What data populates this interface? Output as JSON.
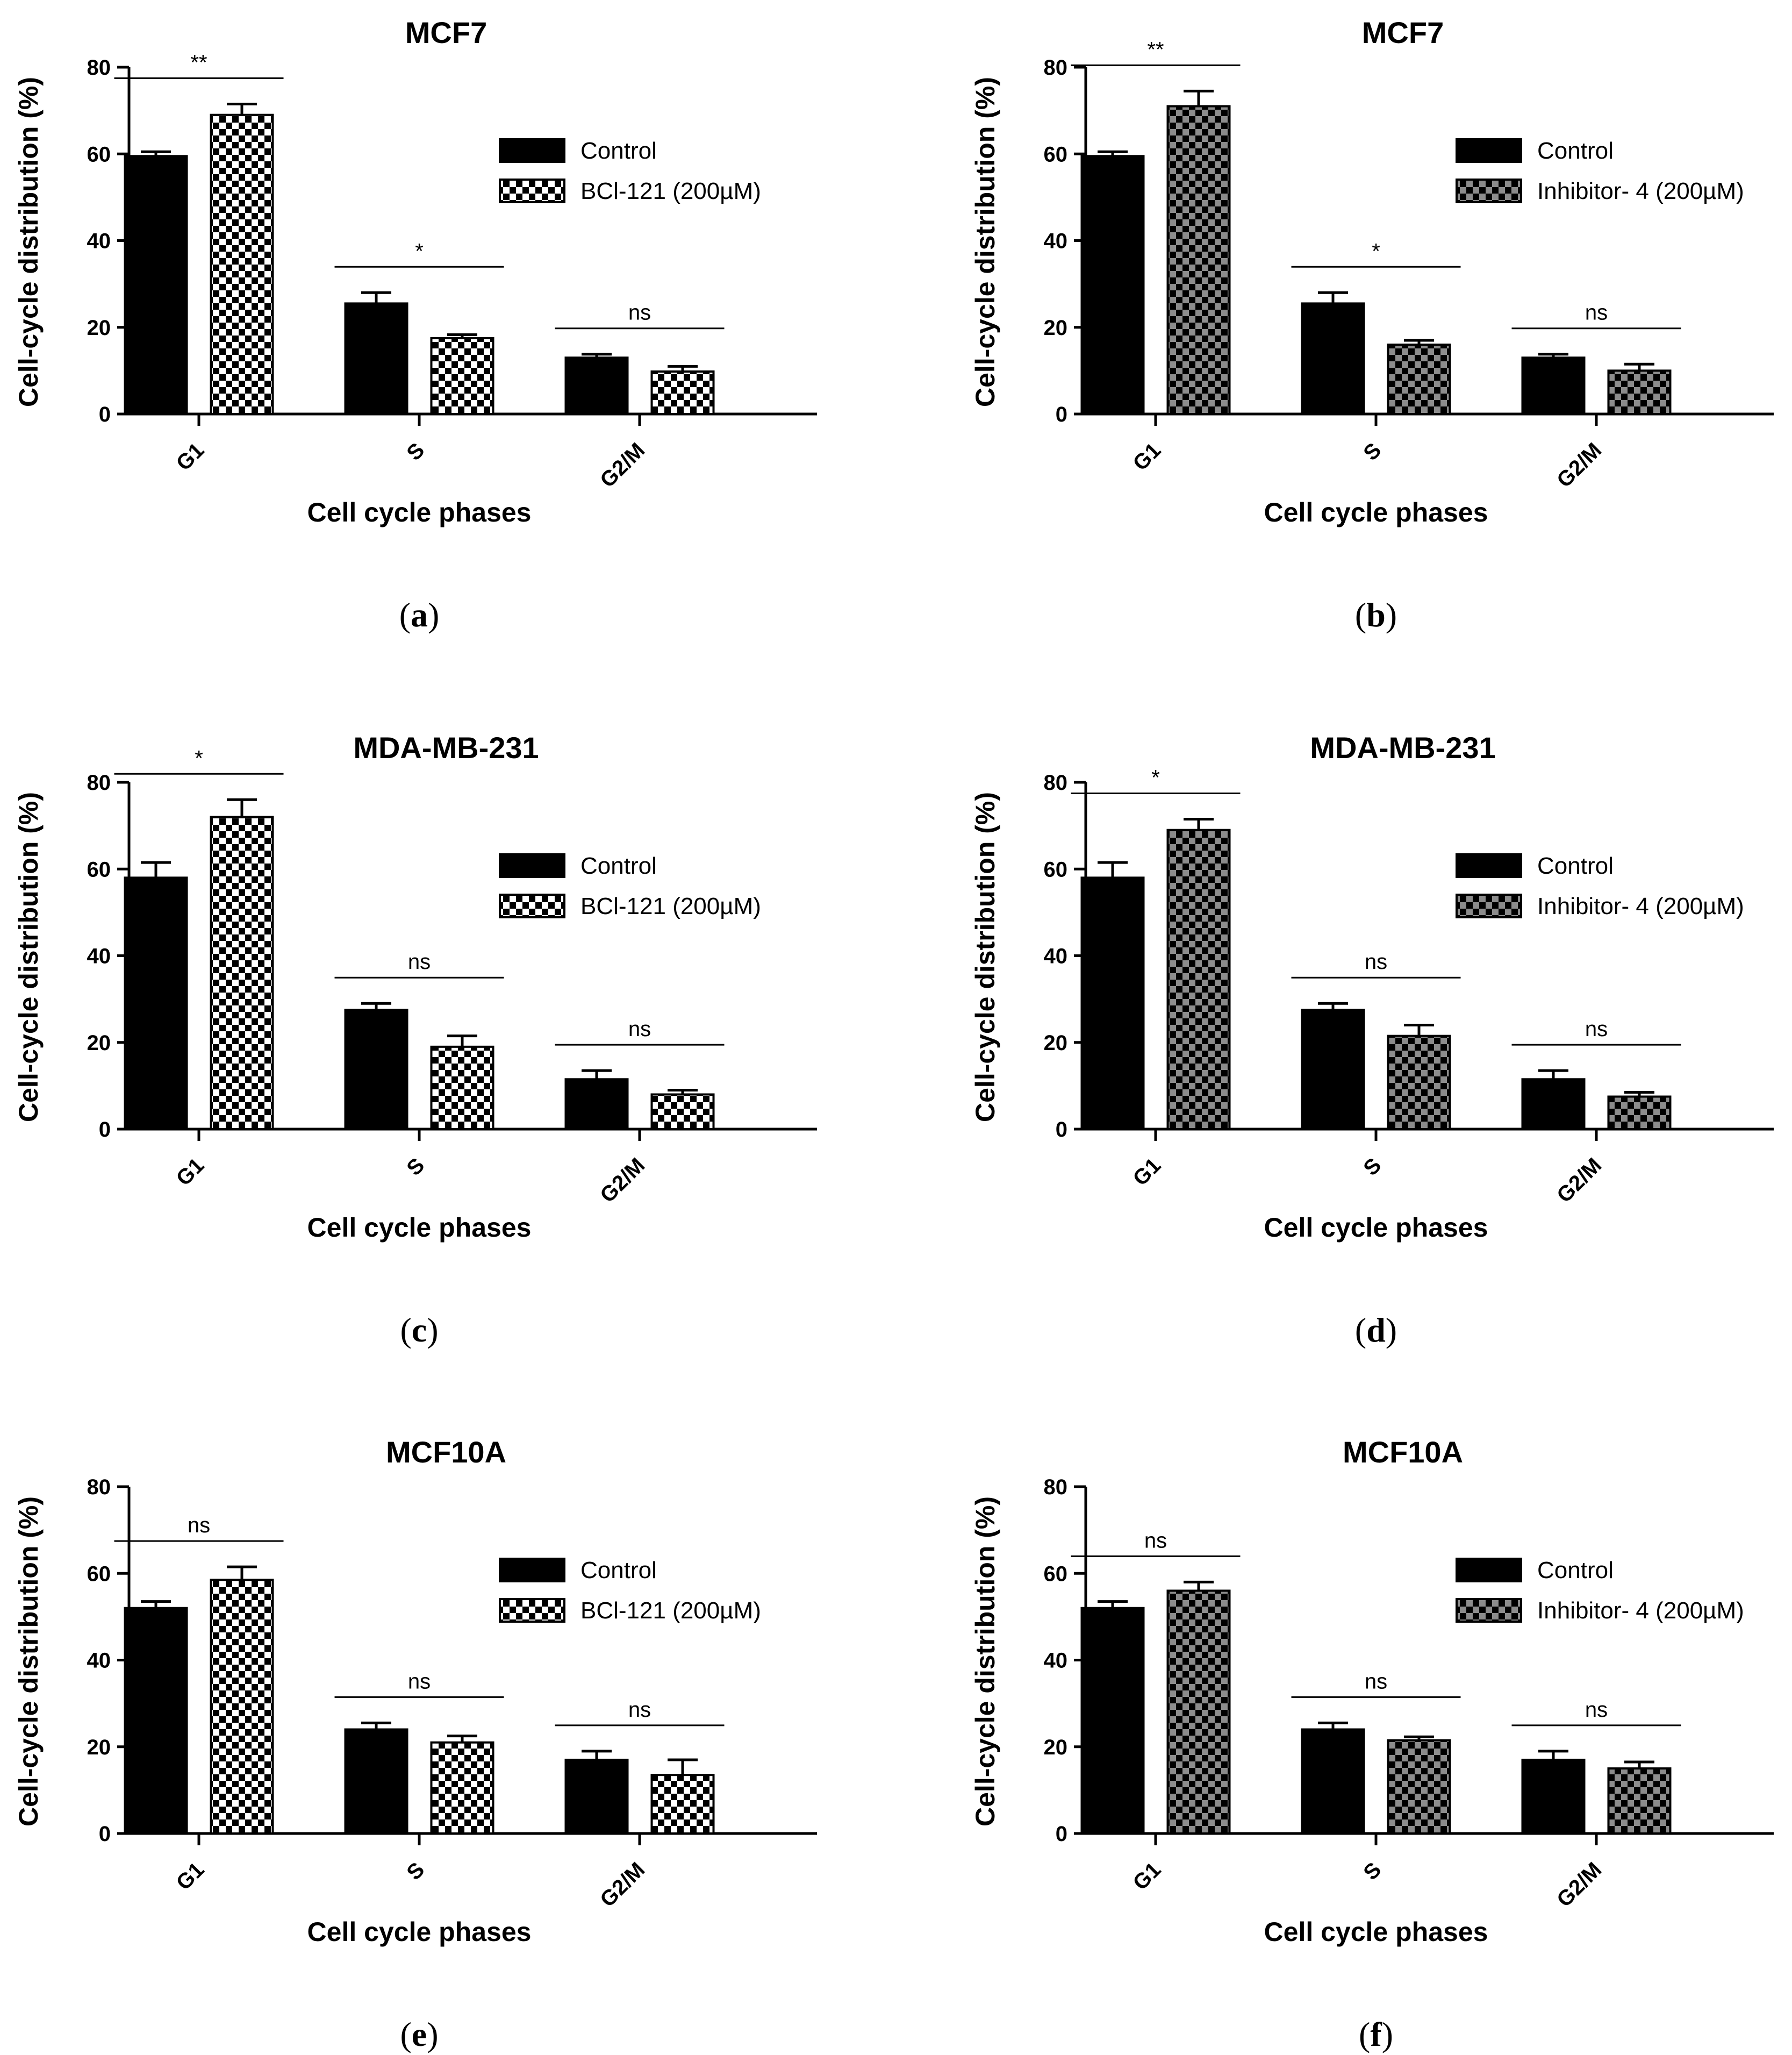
{
  "chart_data": [
    {
      "id": "a",
      "type": "bar",
      "title": "MCF7",
      "xlabel": "Cell cycle phases",
      "ylabel": "Cell-cycle distribution (%)",
      "ylim": [
        0,
        80
      ],
      "yticks": [
        "0",
        "20",
        "40",
        "60",
        "80"
      ],
      "categories": [
        "G1",
        "S",
        "G2/M"
      ],
      "series": [
        {
          "name": "Control",
          "pattern": "solid",
          "values": [
            59.5,
            25.5,
            13.0
          ],
          "errors": [
            1.0,
            2.5,
            0.8
          ]
        },
        {
          "name": "BCl-121 (200µM)",
          "pattern": "checker",
          "values": [
            69.0,
            17.5,
            9.8
          ],
          "errors": [
            2.5,
            0.8,
            1.2
          ]
        }
      ],
      "significance": [
        "**",
        "*",
        "ns"
      ],
      "caption_open": "(",
      "caption_letter": "a",
      "caption_close": ")"
    },
    {
      "id": "b",
      "type": "bar",
      "title": "MCF7",
      "xlabel": "Cell cycle phases",
      "ylabel": "Cell-cycle distribution (%)",
      "ylim": [
        0,
        80
      ],
      "yticks": [
        "0",
        "20",
        "40",
        "60",
        "80"
      ],
      "categories": [
        "G1",
        "S",
        "G2/M"
      ],
      "series": [
        {
          "name": "Control",
          "pattern": "solid",
          "values": [
            59.5,
            25.5,
            13.0
          ],
          "errors": [
            1.0,
            2.5,
            0.8
          ]
        },
        {
          "name": "Inhibitor- 4 (200µM)",
          "pattern": "gray-checker",
          "values": [
            71.0,
            16.0,
            10.0
          ],
          "errors": [
            3.5,
            1.0,
            1.5
          ]
        }
      ],
      "significance": [
        "**",
        "*",
        "ns"
      ],
      "caption_open": "(",
      "caption_letter": "b",
      "caption_close": ")"
    },
    {
      "id": "c",
      "type": "bar",
      "title": "MDA-MB-231",
      "xlabel": "Cell cycle phases",
      "ylabel": "Cell-cycle distribution (%)",
      "ylim": [
        0,
        80
      ],
      "yticks": [
        "0",
        "20",
        "40",
        "60",
        "80"
      ],
      "categories": [
        "G1",
        "S",
        "G2/M"
      ],
      "series": [
        {
          "name": "Control",
          "pattern": "solid",
          "values": [
            58.0,
            27.5,
            11.5
          ],
          "errors": [
            3.5,
            1.5,
            2.0
          ]
        },
        {
          "name": "BCl-121 (200µM)",
          "pattern": "checker",
          "values": [
            72.0,
            19.0,
            8.0
          ],
          "errors": [
            4.0,
            2.5,
            1.0
          ]
        }
      ],
      "significance": [
        "*",
        "ns",
        "ns"
      ],
      "caption_open": "(",
      "caption_letter": "c",
      "caption_close": ")"
    },
    {
      "id": "d",
      "type": "bar",
      "title": "MDA-MB-231",
      "xlabel": "Cell cycle phases",
      "ylabel": "Cell-cycle distribution (%)",
      "ylim": [
        0,
        80
      ],
      "yticks": [
        "0",
        "20",
        "40",
        "60",
        "80"
      ],
      "categories": [
        "G1",
        "S",
        "G2/M"
      ],
      "series": [
        {
          "name": "Control",
          "pattern": "solid",
          "values": [
            58.0,
            27.5,
            11.5
          ],
          "errors": [
            3.5,
            1.5,
            2.0
          ]
        },
        {
          "name": "Inhibitor- 4 (200µM)",
          "pattern": "gray-checker",
          "values": [
            69.0,
            21.5,
            7.5
          ],
          "errors": [
            2.5,
            2.5,
            1.0
          ]
        }
      ],
      "significance": [
        "*",
        "ns",
        "ns"
      ],
      "caption_open": "(",
      "caption_letter": "d",
      "caption_close": ")"
    },
    {
      "id": "e",
      "type": "bar",
      "title": "MCF10A",
      "xlabel": "Cell cycle phases",
      "ylabel": "Cell-cycle distribution (%)",
      "ylim": [
        0,
        80
      ],
      "yticks": [
        "0",
        "20",
        "40",
        "60",
        "80"
      ],
      "categories": [
        "G1",
        "S",
        "G2/M"
      ],
      "series": [
        {
          "name": "Control",
          "pattern": "solid",
          "values": [
            52.0,
            24.0,
            17.0
          ],
          "errors": [
            1.5,
            1.5,
            2.0
          ]
        },
        {
          "name": "BCl-121 (200µM)",
          "pattern": "checker",
          "values": [
            58.5,
            21.0,
            13.5
          ],
          "errors": [
            3.0,
            1.5,
            3.5
          ]
        }
      ],
      "significance": [
        "ns",
        "ns",
        "ns"
      ],
      "caption_open": "(",
      "caption_letter": "e",
      "caption_close": ")"
    },
    {
      "id": "f",
      "type": "bar",
      "title": "MCF10A",
      "xlabel": "Cell cycle phases",
      "ylabel": "Cell-cycle distribution (%)",
      "ylim": [
        0,
        80
      ],
      "yticks": [
        "0",
        "20",
        "40",
        "60",
        "80"
      ],
      "categories": [
        "G1",
        "S",
        "G2/M"
      ],
      "series": [
        {
          "name": "Control",
          "pattern": "solid",
          "values": [
            52.0,
            24.0,
            17.0
          ],
          "errors": [
            1.5,
            1.5,
            2.0
          ]
        },
        {
          "name": "Inhibitor- 4 (200µM)",
          "pattern": "gray-checker",
          "values": [
            56.0,
            21.5,
            15.0
          ],
          "errors": [
            2.0,
            0.8,
            1.5
          ]
        }
      ],
      "significance": [
        "ns",
        "ns",
        "ns"
      ],
      "caption_open": "(",
      "caption_letter": "f",
      "caption_close": ")"
    }
  ],
  "colors": {
    "bar_solid": "#000000",
    "checker_dark": "#000000",
    "checker_light": "#ffffff",
    "checker_gray": "#8c8c8c",
    "axis": "#000000"
  }
}
